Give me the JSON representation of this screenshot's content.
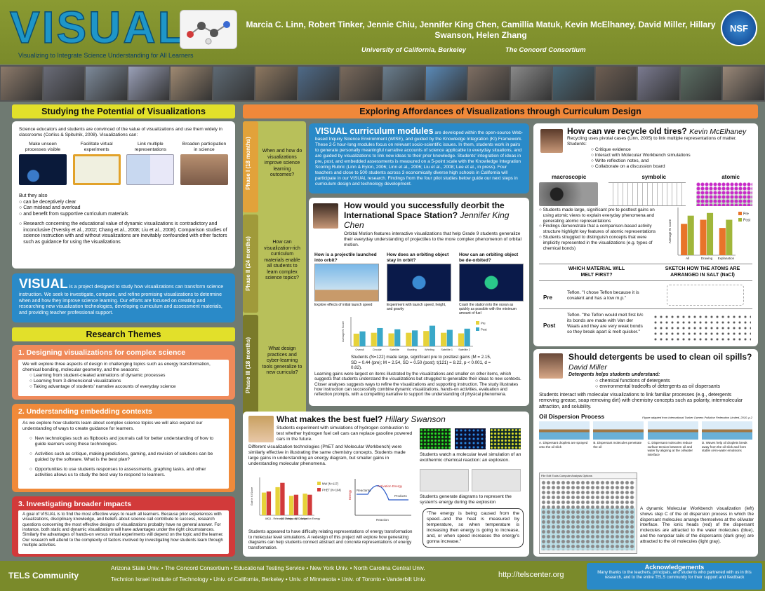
{
  "header": {
    "logo": "VISUAL",
    "tagline": "Visualizing to Integrate Science Understanding for All Learners",
    "authors": "Marcia C. Linn, Robert Tinker, Jennie Chiu, Jennifer King Chen, Camillia Matuk, Kevin McElhaney, David Miller, Hillary Swanson, Helen Zhang",
    "aff1": "University of California, Berkeley",
    "aff2": "The Concord Consortium",
    "nsf": "NSF"
  },
  "photo_colors": [
    "#8d7a6a",
    "#6a6c78",
    "#7d8a9a",
    "#9aa0b8",
    "#a08a72",
    "#5e6a74",
    "#8e7860",
    "#4e6a88",
    "#7a6a5c",
    "#6a7e8e",
    "#5a8ab8",
    "#7e6e62",
    "#8a8a8a",
    "#4a6a7a",
    "#6e5e52",
    "#7a7a90",
    "#5c6f64",
    "#9a8878"
  ],
  "left": {
    "studying_title": "Studying the Potential of Visualizations",
    "studying_intro": "Science educators and students are convinced of the value of visualizations and use them widely in classrooms (Corliss & Spitulnik, 2008). Visualizations can:",
    "can_items": [
      "Make unseen processes visible",
      "Facilitate virtual experiments",
      "Link multiple representations",
      "Broaden participation in science"
    ],
    "but_intro": "But they also",
    "but_items": [
      "can be deceptively clear",
      "Can mislead and overload",
      "and benefit from supportive curriculum materials"
    ],
    "research_text": "Research concerning the educational value of dynamic visualizations is contradictory and inconclusive (Tversky et al., 2002; Chang et al., 2008; Liu et al., 2008). Comparison studies of science instruction with and without visualizations are inevitably confounded with other factors such as guidance for using the visualizations",
    "visual_word": "VISUAL",
    "visual_text": "is a project designed to study how visualizations can transform science instruction. We seek to investigate, compare, and refine promising visualizations to determine when and how they improve science learning. Our efforts are focused on creating and researching new visualization technologies, developing curriculum and assessment materials, and providing teacher professional support.",
    "themes_title": "Research Themes",
    "theme1_title": "1. Designing visualizations for complex science",
    "theme1_intro": "We will explore three aspects of design in challenging topics such as energy transformation, chemical bonding, molecular geometry, and the seasons:",
    "theme1_items": [
      "Learning from student-created animations of dynamic processes",
      "Learning from 3-dimensional visualizations",
      "Taking advantage of students' narrative accounts of everyday science"
    ],
    "theme2_title": "2. Understanding embedding contexts",
    "theme2_intro": "As we explore how students learn about complex science topics we will also expand our understanding of ways to create guidance for learners.",
    "theme2_items": [
      "New technologies such as flipbooks and journals call for better understanding of how to guide learners using these technologies.",
      "Activities such as critique, making predictions, gaming, and revision of solutions can be guided by the software. What is the best plan?",
      "Opportunities to use students responses to assessments, graphing tasks, and other activities allows us to study the best way to respond to learners."
    ],
    "theme3_title": "3. Investigating broader impacts",
    "theme3_text": "A goal of VISUAL is to find the most effective ways to reach all learners. Because prior experiences with visualizations, disciplinary knowledge, and beliefs about science call contribute to success, research questions concerning the most effective designs of visualizations probably have no general answer. For instance, both static and dynamic visualizations will have advantages under the right circumstances. Similarly the advantages of hands-on versus virtual experiments will depend on the topic and the learner. Our research will attend to the complexity of factors involved by investigating how students learn through multiple activities."
  },
  "right": {
    "banner": "Exploring Affordances of Visualizations through Curriculum Design",
    "phases": [
      {
        "tab": "Phase I (18 months)",
        "q": "When and how do visualizations improve science learning outcomes?"
      },
      {
        "tab": "Phase II (24 months)",
        "q": "How can visualization-rich curriculum materials enable all students to learn complex science topics?"
      },
      {
        "tab": "Phase III (18 months)",
        "q": "What design practices and cyber-learning tools generalize to new curricula?"
      }
    ],
    "modules_title": "VISUAL curriculum modules",
    "modules_text": "are developed within the open-source Web-based Inquiry Science Environment (WISE), and guided by the Knowledge Integration (KI) Framework. These 2-5 hour-long modules focus on relevant socio-scientific issues. In them, students work in pairs to generate personally meaningful narrative accounts of science applicable to everyday situations, and are guided by visualizations to link new ideas to their prior knowledge. Students' integration of ideas in pre, post, and embedded assessments is measured on a 5-point scale with the Knowledge Integration Scoring Rubric (Linn & Eylon, 2006; Linn et al., 2006; Liu et al., 2008; Lee et al., in press). Four teachers and close to 500 students across 3 economically diverse high schools in California will participate in our VISUAL research. Findings from the four pilot studies below guide our next steps in curriculum design and technology development.",
    "iss_title": "How would you successfully deorbit the International Space Station?",
    "iss_author": "Jennifer King Chen",
    "iss_text": "Orbital Motion features interactive visualizations that help Grade 9 students generalize their everyday understanding of projectiles to the more complex phenomenon of orbital motion.",
    "iss_q": [
      "How is a projectile launched into orbit?",
      "How does an orbiting object stay in orbit?",
      "How can an orbiting object be de-orbited?"
    ],
    "iss_cap": [
      "Explore effects of initial launch speed",
      "Experiment with launch speed, height, and gravity",
      "Crash the station into the ocean as quickly as possible with the minimum amount of fuel"
    ],
    "iss_stats": "Students (N=122) made large, significant pre to posttest gains (M = 2.15, SD = 0.44 (pre); M = 2.54, SD = 0.50 (post); t(121) = 8.22, p < 0.001, d = 0.82).",
    "iss_text2": "Learning gains were largest on items illustrated by the visualizations and smaller on other items, which suggests that students understand the visualizations but struggled to generalize their ideas to new contexts. Closer analyses suggests ways to refine the visualizations and supporting instruction. The study illustrates how instruction can successfully combine dynamic visualizations, hands-on activities, evaluation and reflection prompts, with a compelling narrative to support the understanding of physical phenomena.",
    "tire_title": "How can we recycle old tires?",
    "tire_author": "Kevin McElhaney",
    "tire_intro": "Recycling uses pivotal cases (Linn, 2005) to link multiple representations of matter. Students:",
    "tire_items": [
      "Critique evidence",
      "Interact with Molecular Workbench simulations",
      "Write reflection notes, and",
      "Collaborate on a discussion board"
    ],
    "tire_reps": [
      "macroscopic",
      "symbolic",
      "atomic"
    ],
    "tire_findings": [
      "Students made large, significant pre to posttest gains on using atomic views to explain everyday phenomena and generating atomic representations",
      "Findings demonstrate that a comparison-based activity structure highlight key features of atomic representations",
      "Students struggled to distinguish concepts that were implicitly represented in the visualizations (e.g. types of chemical bonds)"
    ],
    "tire_table_h": [
      "WHICH MATERIAL WILL MELT FIRST?",
      "SKETCH HOW THE ATOMS ARE ARRANGED IN SALT (NaCl)"
    ],
    "tire_rows": [
      {
        "label": "Pre",
        "text": "Teflon. \"I chose Teflon because it is covalent and has a low m.p.\""
      },
      {
        "label": "Post",
        "text": "Teflon. \"the Teflon would melt first b/c its bonds are made with Van der Waals and they are very weak bonds so they break apart & melt quicker.\""
      }
    ],
    "det_title": "Should detergents be used to clean oil spills?",
    "det_author": "David Miller",
    "det_intro": "Detergents helps students understand:",
    "det_items": [
      "chemical functions of detergents",
      "environmental tradeoffs of detergents as oil dispersants"
    ],
    "det_text": "Students interact with molecular visualizations to link familiar processes (e.g., detergents removing grease, soap removing dirt) with chemistry concepts such as polarity, intermolecular attraction, and solubility.",
    "oil_title": "Oil Dispersion Process",
    "oil_credit": "Figure adapted from International Tanker Owners Pollution Federation Limited, 2010, p.2",
    "oil_steps": [
      "A. Dispersant droplets are sprayed onto the oil slick",
      "B. Dispersant molecules penetrate the oil",
      "C. Dispersant molecules reduce surface tension between oil and water by aligning at the oil/water interface",
      "D. Waves help oil droplets break away from the oil slick and form stable oil-in-water emulsions"
    ],
    "mw_menu": "File  Edit  Tools  Compute  Analysis  Options",
    "det_caption": "A dynamic Molecular Workbench visualization (left) shows step C of the oil dispersion process in which the dispersant molecules arrange themselves at the oil/water interface. The ionic heads (red) of the dispersant molecules are attracted to the water molecules (blue), and the nonpolar tails of the dispersants (dark grey) are attracted to the oil molecules (light gray).",
    "fuel_title": "What makes the best fuel?",
    "fuel_author": "Hillary Swanson",
    "fuel_text1": "Students experiment with simulations of hydrogen combustion to test whether hydrogen fuel cell cars can replace gasoline powered cars in the future.",
    "fuel_text2": "Different visualization technologies (PhET and Molecular Workbench) were similarly effective in illustrating the same chemistry concepts. Students made large gains in understanding an energy diagram, but smaller gains in understanding molecular phenomena.",
    "fuel_cap1": "Students watch a molecular level simulation of an exothermic chemical reaction: an explosion.",
    "fuel_cap2": "Students generate diagrams to represent the system's energy during the explosion",
    "fuel_quote": "\"The energy is being caused from the speed...and the heat is measured by temperature, so when temperature is increasing then energy is going to increase, and, or when speed increases the energy's gonna increase.\"",
    "fuel_text3": "Students appeared to have difficulty relating representations of energy transformation to molecular level simulations. A redesign of this project will explore how generating diagrams can help students connect abstract and concrete representations of energy transformation.",
    "energy_labels": [
      "Reactants",
      "Activation Energy",
      "Products",
      "Energy",
      "Reaction"
    ]
  },
  "footer": {
    "tels": "TELS Community",
    "line1": "Arizona State Univ.  •  The Concord Consortium  •  Educational Testing Service  •  New York Univ.  •  North Carolina Central Univ.",
    "line2": "Technion Israel Institute of Technology • Univ. of California, Berkeley  •  Univ. of Minnesota  •  Univ. of Toronto  •  Vanderbilt Univ.",
    "url": "http://telscenter.org",
    "ack_title": "Acknowledgements",
    "ack_text": "Many thanks to the teachers, principals, and students who partnered with us in this research, and to the entire TELS community for their support and feedback"
  },
  "chart_data": [
    {
      "type": "bar",
      "ylabel": "Average KI Score",
      "categories": [
        "Overall",
        "Circular",
        "Satellite",
        "Bowling",
        "Whirling",
        "Satellite 1",
        "Satellite 2"
      ],
      "ylim": [
        0,
        5
      ],
      "series": [
        {
          "name": "Pre",
          "values": [
            2.15,
            2.3,
            2.2,
            2.3,
            2.6,
            2.3,
            2.2
          ]
        },
        {
          "name": "Post",
          "values": [
            2.54,
            3.1,
            2.9,
            2.7,
            3.5,
            2.8,
            3.0
          ]
        }
      ],
      "colors": [
        "#e6d23a",
        "#3aa8c8"
      ]
    },
    {
      "type": "bar",
      "ylabel": "Average KI score",
      "categories": [
        "All",
        "Drawing",
        "Explanation"
      ],
      "ylim": [
        0,
        3.5
      ],
      "series": [
        {
          "name": "Pre",
          "values": [
            2.3,
            2.6,
            2.0
          ]
        },
        {
          "name": "Post",
          "values": [
            2.9,
            3.1,
            2.6
          ]
        }
      ],
      "colors": [
        "#e8742a",
        "#a0b63a"
      ]
    },
    {
      "type": "bar",
      "ylabel": "Gain in KI Score",
      "categories": [
        "All",
        "Q1 - Released Energy",
        "Q2 - Molecular Change",
        "Q3 - Activation Energy"
      ],
      "ylim": [
        0,
        0.7
      ],
      "series": [
        {
          "name": "MW (N=117)",
          "values": [
            0.42,
            0.52,
            0.36,
            0.4
          ]
        },
        {
          "name": "PHET (N=104)",
          "values": [
            0.44,
            0.6,
            0.38,
            0.38
          ]
        }
      ],
      "colors": [
        "#e6d23a",
        "#d23a3a"
      ]
    }
  ]
}
